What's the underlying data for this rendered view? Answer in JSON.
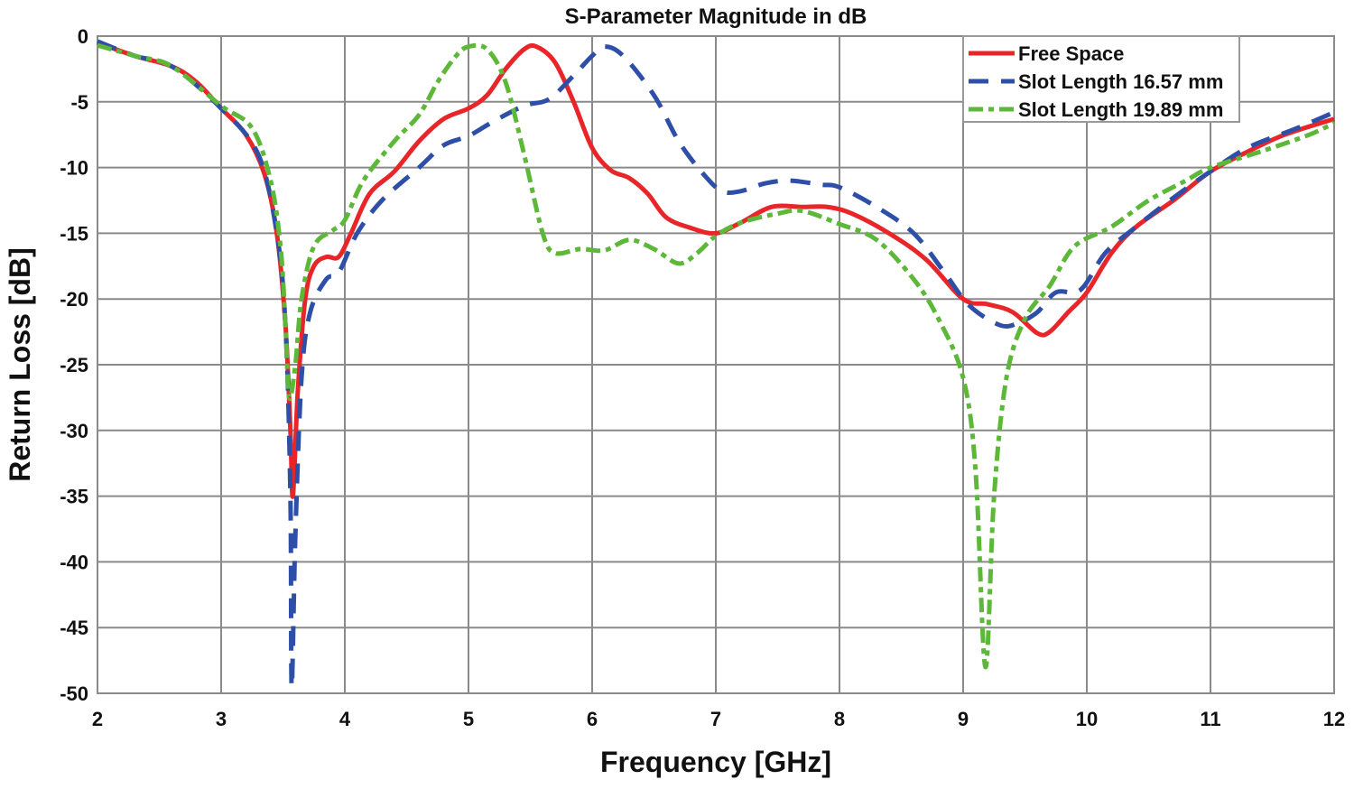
{
  "chart_data": {
    "type": "line",
    "title": "S-Parameter Magnitude in dB",
    "xlabel": "Frequency [GHz]",
    "ylabel": "Return Loss [dB]",
    "xlim": [
      2,
      12
    ],
    "ylim": [
      -50,
      0
    ],
    "xticks": [
      2,
      3,
      4,
      5,
      6,
      7,
      8,
      9,
      10,
      11,
      12
    ],
    "yticks": [
      0,
      -5,
      -10,
      -15,
      -20,
      -25,
      -30,
      -35,
      -40,
      -45,
      -50
    ],
    "grid": true,
    "legend_position": "top-right",
    "series": [
      {
        "name": "Free Space",
        "color": "#e8262a",
        "style": "solid",
        "x": [
          2.0,
          2.3,
          2.6,
          2.8,
          3.0,
          3.2,
          3.35,
          3.45,
          3.52,
          3.56,
          3.58,
          3.62,
          3.68,
          3.75,
          3.85,
          3.95,
          4.05,
          4.2,
          4.4,
          4.6,
          4.8,
          5.0,
          5.15,
          5.3,
          5.45,
          5.55,
          5.7,
          5.85,
          6.0,
          6.15,
          6.3,
          6.45,
          6.6,
          6.8,
          7.0,
          7.2,
          7.45,
          7.7,
          7.9,
          8.1,
          8.4,
          8.7,
          9.0,
          9.2,
          9.4,
          9.6,
          9.7,
          9.85,
          10.0,
          10.2,
          10.4,
          10.7,
          11.0,
          11.3,
          11.6,
          12.0
        ],
        "y": [
          -0.5,
          -1.5,
          -2.3,
          -3.5,
          -5.5,
          -7.5,
          -10.5,
          -15,
          -22,
          -30,
          -35,
          -27,
          -20,
          -17.5,
          -16.8,
          -16.8,
          -15,
          -12,
          -10.3,
          -8,
          -6.3,
          -5.5,
          -4.5,
          -2.5,
          -1,
          -0.8,
          -2,
          -5,
          -8.5,
          -10.2,
          -10.8,
          -12,
          -13.8,
          -14.6,
          -15,
          -14.2,
          -13,
          -13,
          -13,
          -13.5,
          -15,
          -17,
          -20,
          -20.4,
          -21,
          -22.6,
          -22.5,
          -21,
          -19.5,
          -16.5,
          -14.5,
          -12.5,
          -10.3,
          -8.8,
          -7.5,
          -6.3
        ]
      },
      {
        "name": "Slot Length 16.57 mm",
        "color": "#2e4fa8",
        "style": "dashed",
        "x": [
          2.0,
          2.3,
          2.6,
          3.0,
          3.3,
          3.45,
          3.52,
          3.56,
          3.57,
          3.6,
          3.65,
          3.72,
          3.85,
          3.95,
          4.1,
          4.3,
          4.6,
          4.8,
          5.0,
          5.2,
          5.45,
          5.65,
          5.85,
          6.0,
          6.1,
          6.25,
          6.5,
          6.7,
          6.9,
          7.05,
          7.2,
          7.4,
          7.6,
          7.85,
          8.0,
          8.3,
          8.6,
          8.85,
          9.05,
          9.3,
          9.45,
          9.6,
          9.75,
          9.95,
          10.15,
          10.4,
          10.7,
          11.0,
          11.3,
          11.7,
          12.0
        ],
        "y": [
          -0.4,
          -1.5,
          -2.3,
          -5.5,
          -9,
          -15,
          -22,
          -35,
          -49.5,
          -38,
          -26,
          -21,
          -18.5,
          -18,
          -15,
          -12.5,
          -10,
          -8.3,
          -7.6,
          -6.5,
          -5.3,
          -4.8,
          -3,
          -1.5,
          -0.8,
          -1.5,
          -4.5,
          -8,
          -10.5,
          -11.8,
          -11.8,
          -11.2,
          -11,
          -11.3,
          -11.5,
          -13,
          -15,
          -18,
          -20.5,
          -22,
          -21.8,
          -21,
          -19.5,
          -19.3,
          -16.5,
          -14.5,
          -12.3,
          -10.3,
          -8.5,
          -7,
          -5.8
        ]
      },
      {
        "name": "Slot Length 19.89 mm",
        "color": "#5db83a",
        "style": "dashdot",
        "x": [
          2.0,
          2.3,
          2.6,
          3.0,
          3.25,
          3.4,
          3.48,
          3.52,
          3.55,
          3.6,
          3.65,
          3.75,
          3.9,
          4.0,
          4.15,
          4.4,
          4.6,
          4.75,
          4.9,
          5.0,
          5.15,
          5.3,
          5.45,
          5.6,
          5.7,
          5.9,
          6.1,
          6.3,
          6.5,
          6.7,
          6.85,
          7.0,
          7.2,
          7.5,
          7.7,
          8.0,
          8.3,
          8.6,
          8.8,
          9.0,
          9.1,
          9.18,
          9.25,
          9.35,
          9.5,
          9.7,
          9.9,
          10.2,
          10.5,
          10.8,
          11.0,
          11.4,
          11.8,
          12.0
        ],
        "y": [
          -0.7,
          -1.5,
          -2.3,
          -5.3,
          -7,
          -11,
          -16,
          -22,
          -27.5,
          -25,
          -20,
          -16,
          -14.8,
          -14,
          -11,
          -8,
          -6,
          -3.5,
          -1.5,
          -0.8,
          -1,
          -3.5,
          -9,
          -15,
          -16.5,
          -16.2,
          -16.3,
          -15.5,
          -16.2,
          -17.3,
          -16.5,
          -15.2,
          -14.2,
          -13.5,
          -13.3,
          -14.3,
          -15.5,
          -18.5,
          -21.5,
          -26,
          -33,
          -48,
          -35,
          -26,
          -21.5,
          -19,
          -16,
          -14.5,
          -12.5,
          -11,
          -10,
          -8.8,
          -7.5,
          -6.6
        ]
      }
    ]
  }
}
